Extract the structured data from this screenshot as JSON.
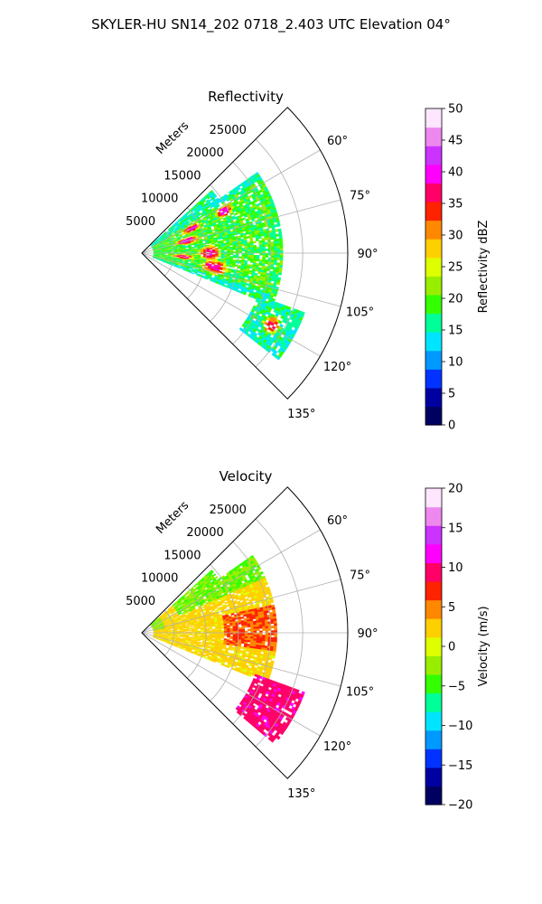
{
  "suptitle": "SKYLER-HU  SN14_202  0718_2.403 UTC Elevation 04°",
  "chart_data": [
    {
      "type": "heatmap",
      "subtype": "polar-sector (radar PPI)",
      "title": "Reflectivity",
      "radial_axis_label": "Meters",
      "radial_ticks": [
        "5000",
        "10000",
        "15000",
        "20000",
        "25000"
      ],
      "angular_ticks": [
        "60°",
        "75°",
        "90°",
        "105°",
        "120°",
        "135°"
      ],
      "r_max": 32000,
      "theta_range_deg": [
        45,
        135
      ],
      "colorbar": {
        "label": "Reflectivity dBZ",
        "ticks": [
          "0",
          "5",
          "10",
          "15",
          "20",
          "25",
          "30",
          "35",
          "40",
          "45",
          "50"
        ],
        "range": [
          0,
          50
        ],
        "colors": [
          "#000060",
          "#0000a0",
          "#0033ff",
          "#0099ff",
          "#00e5ff",
          "#00ff99",
          "#33ff00",
          "#99ee00",
          "#ddff00",
          "#ffd000",
          "#ff8800",
          "#ff2200",
          "#ff0066",
          "#ff00ff",
          "#cc33ff",
          "#ee88ee",
          "#ffe6ff"
        ]
      },
      "grid": true
    },
    {
      "type": "heatmap",
      "subtype": "polar-sector (radar PPI)",
      "title": "Velocity",
      "radial_axis_label": "Meters",
      "radial_ticks": [
        "5000",
        "10000",
        "15000",
        "20000",
        "25000"
      ],
      "angular_ticks": [
        "60°",
        "75°",
        "90°",
        "105°",
        "120°",
        "135°"
      ],
      "r_max": 32000,
      "theta_range_deg": [
        45,
        135
      ],
      "colorbar": {
        "label": "Velocity (m/s)",
        "ticks": [
          "−20",
          "−15",
          "−10",
          "−5",
          "0",
          "5",
          "10",
          "15",
          "20"
        ],
        "range": [
          -20,
          20
        ],
        "colors": [
          "#000060",
          "#0000a0",
          "#0033ff",
          "#0099ff",
          "#00e5ff",
          "#00ff99",
          "#33ff00",
          "#99ee00",
          "#ddff00",
          "#ffd000",
          "#ff8800",
          "#ff2200",
          "#ff0066",
          "#ff00ff",
          "#cc33ff",
          "#ee88ee",
          "#ffe6ff"
        ]
      },
      "grid": true
    }
  ]
}
